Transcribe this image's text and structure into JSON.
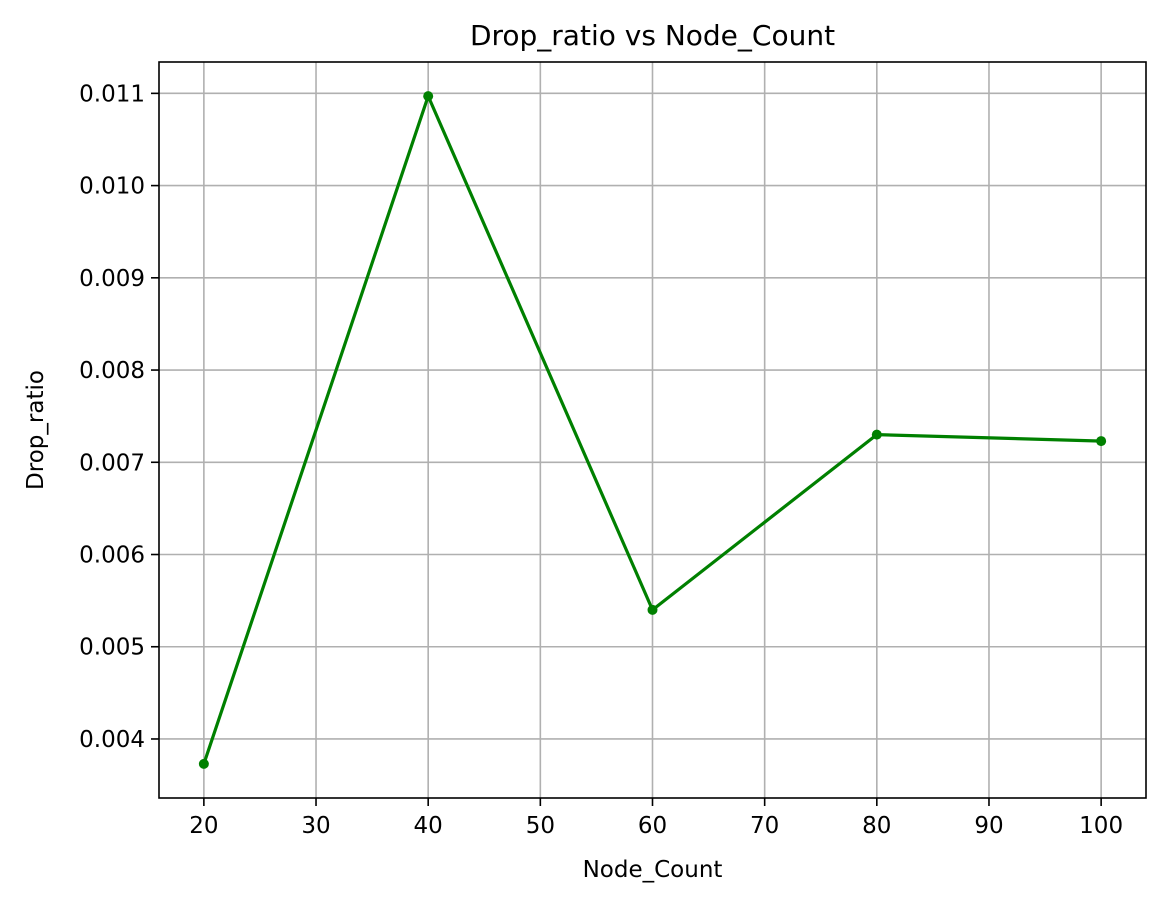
{
  "chart_data": {
    "type": "line",
    "title": "Drop_ratio vs Node_Count",
    "xlabel": "Node_Count",
    "ylabel": "Drop_ratio",
    "x": [
      20,
      40,
      60,
      80,
      100
    ],
    "series": [
      {
        "values": [
          0.00373,
          0.01097,
          0.0054,
          0.0073,
          0.00723
        ],
        "color": "#008000",
        "marker": "circle"
      }
    ],
    "xlim": [
      16,
      104
    ],
    "ylim": [
      0.00336,
      0.01134
    ],
    "xticks": [
      20,
      30,
      40,
      50,
      60,
      70,
      80,
      90,
      100
    ],
    "xtick_labels": [
      "20",
      "30",
      "40",
      "50",
      "60",
      "70",
      "80",
      "90",
      "100"
    ],
    "yticks": [
      0.004,
      0.005,
      0.006,
      0.007,
      0.008,
      0.009,
      0.01,
      0.011
    ],
    "ytick_labels": [
      "0.004",
      "0.005",
      "0.006",
      "0.007",
      "0.008",
      "0.009",
      "0.010",
      "0.011"
    ],
    "grid": true,
    "legend": "none"
  }
}
